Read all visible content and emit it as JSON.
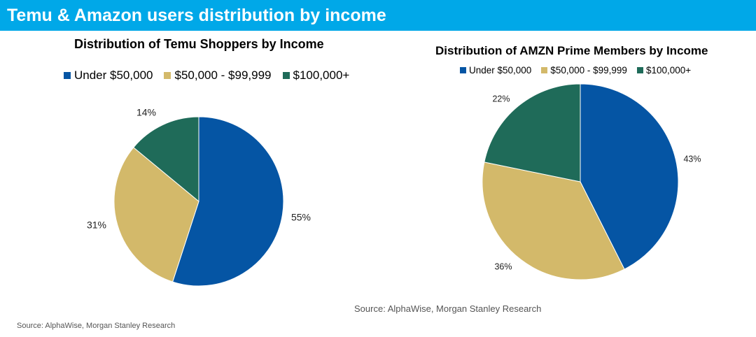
{
  "banner": {
    "title": "Temu & Amazon users distribution by income"
  },
  "colors": {
    "banner": "#00a8e8",
    "under_50k": "#0555a4",
    "mid_50k_100k": "#d3b96a",
    "over_100k": "#1f6b59"
  },
  "chart_data": [
    {
      "type": "pie",
      "title": "Distribution of Temu Shoppers by Income",
      "categories": [
        "Under $50,000",
        "$50,000 - $99,999",
        "$100,000+"
      ],
      "values": [
        55,
        31,
        14
      ],
      "labels": [
        "55%",
        "31%",
        "14%"
      ],
      "legend": "top",
      "source": "Source: AlphaWise, Morgan Stanley Research"
    },
    {
      "type": "pie",
      "title": "Distribution of AMZN Prime Members by Income",
      "categories": [
        "Under $50,000",
        "$50,000 - $99,999",
        "$100,000+"
      ],
      "values": [
        43,
        36,
        22
      ],
      "labels": [
        "43%",
        "36%",
        "22%"
      ],
      "legend": "top",
      "source": "Source: AlphaWise, Morgan Stanley Research"
    }
  ]
}
